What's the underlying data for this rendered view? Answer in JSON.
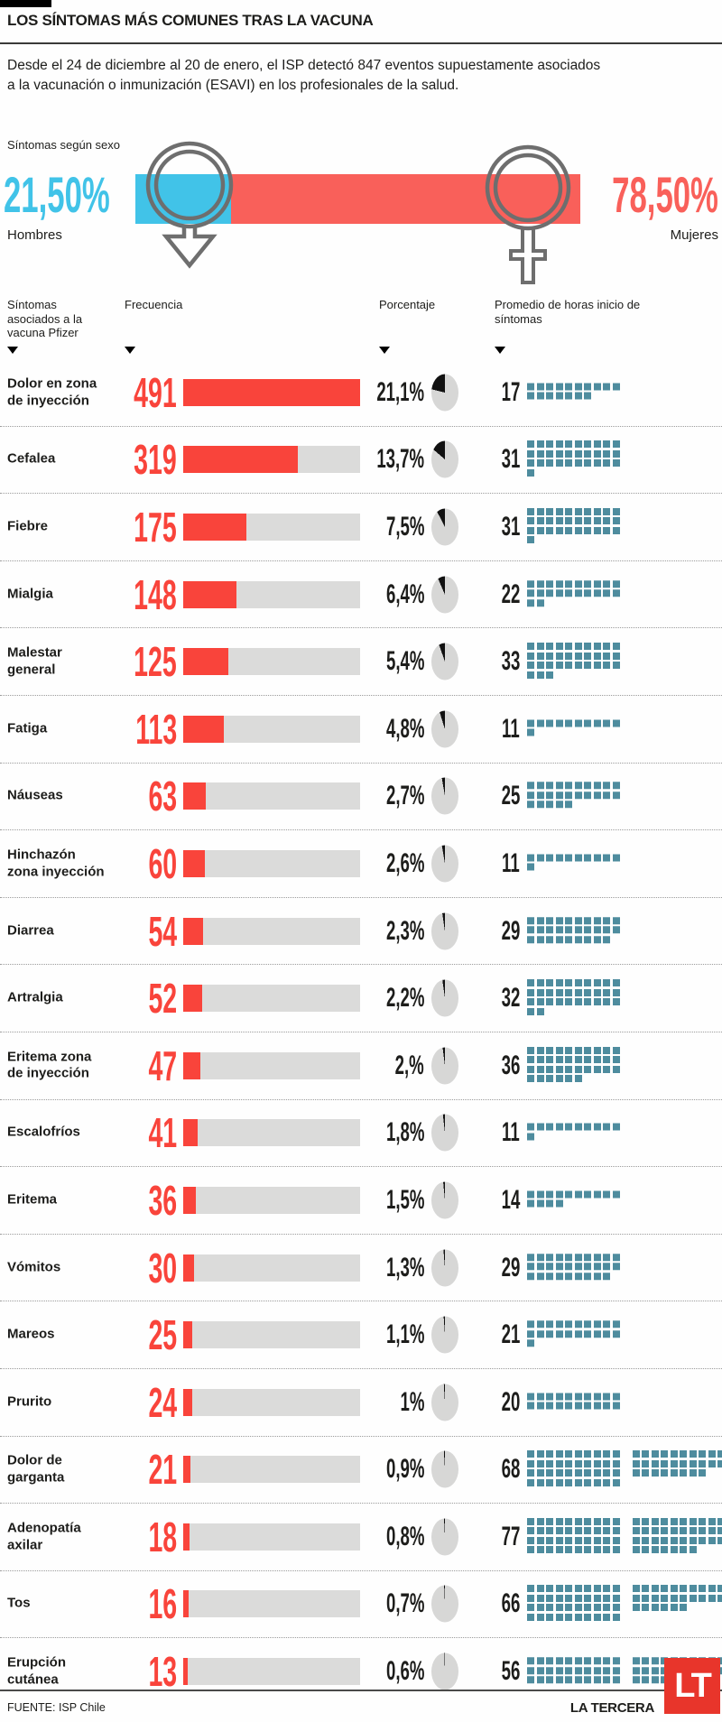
{
  "header": {
    "title": "LOS SÍNTOMAS MÁS COMUNES TRAS LA VACUNA",
    "subtitle": "Desde el 24 de diciembre al 20 de enero, el ISP detectó 847 eventos supuestamente asociados a la vacunación o inmunización (ESAVI) en los profesionales de la salud."
  },
  "sex": {
    "label": "Síntomas según sexo",
    "male_pct_label": "21,50%",
    "male_word": "Hombres",
    "male_value": 21.5,
    "female_pct_label": "78,50%",
    "female_word": "Mujeres",
    "female_value": 78.5
  },
  "chart_data": {
    "type": "table",
    "title": "LOS SÍNTOMAS MÁS COMUNES TRAS LA VACUNA",
    "columns": [
      "Síntomas asociados a la vacuna Pfizer",
      "Frecuencia",
      "Porcentaje",
      "Promedio de horas inicio de síntomas"
    ],
    "frequency_max": 491,
    "sex_split": {
      "male": 21.5,
      "female": 78.5
    },
    "rows": [
      {
        "symptom": "Dolor en zona de inyección",
        "frequency": 491,
        "pct_label": "21,1%",
        "pct": 21.1,
        "hours": 17
      },
      {
        "symptom": "Cefalea",
        "frequency": 319,
        "pct_label": "13,7%",
        "pct": 13.7,
        "hours": 31
      },
      {
        "symptom": "Fiebre",
        "frequency": 175,
        "pct_label": "7,5%",
        "pct": 7.5,
        "hours": 31
      },
      {
        "symptom": "Mialgia",
        "frequency": 148,
        "pct_label": "6,4%",
        "pct": 6.4,
        "hours": 22
      },
      {
        "symptom": "Malestar general",
        "frequency": 125,
        "pct_label": "5,4%",
        "pct": 5.4,
        "hours": 33
      },
      {
        "symptom": "Fatiga",
        "frequency": 113,
        "pct_label": "4,8%",
        "pct": 4.8,
        "hours": 11
      },
      {
        "symptom": "Náuseas",
        "frequency": 63,
        "pct_label": "2,7%",
        "pct": 2.7,
        "hours": 25
      },
      {
        "symptom": "Hinchazón zona inyección",
        "frequency": 60,
        "pct_label": "2,6%",
        "pct": 2.6,
        "hours": 11
      },
      {
        "symptom": "Diarrea",
        "frequency": 54,
        "pct_label": "2,3%",
        "pct": 2.3,
        "hours": 29
      },
      {
        "symptom": "Artralgia",
        "frequency": 52,
        "pct_label": "2,2%",
        "pct": 2.2,
        "hours": 32
      },
      {
        "symptom": "Eritema zona de inyección",
        "frequency": 47,
        "pct_label": "2,%",
        "pct": 2.0,
        "hours": 36
      },
      {
        "symptom": "Escalofríos",
        "frequency": 41,
        "pct_label": "1,8%",
        "pct": 1.8,
        "hours": 11
      },
      {
        "symptom": "Eritema",
        "frequency": 36,
        "pct_label": "1,5%",
        "pct": 1.5,
        "hours": 14
      },
      {
        "symptom": "Vómitos",
        "frequency": 30,
        "pct_label": "1,3%",
        "pct": 1.3,
        "hours": 29
      },
      {
        "symptom": "Mareos",
        "frequency": 25,
        "pct_label": "1,1%",
        "pct": 1.1,
        "hours": 21
      },
      {
        "symptom": "Prurito",
        "frequency": 24,
        "pct_label": "1%",
        "pct": 1.0,
        "hours": 20
      },
      {
        "symptom": "Dolor de garganta",
        "frequency": 21,
        "pct_label": "0,9%",
        "pct": 0.9,
        "hours": 68
      },
      {
        "symptom": "Adenopatía axilar",
        "frequency": 18,
        "pct_label": "0,8%",
        "pct": 0.8,
        "hours": 77
      },
      {
        "symptom": "Tos",
        "frequency": 16,
        "pct_label": "0,7%",
        "pct": 0.7,
        "hours": 66
      },
      {
        "symptom": "Erupción cutánea",
        "frequency": 13,
        "pct_label": "0,6%",
        "pct": 0.6,
        "hours": 56
      }
    ]
  },
  "footer": {
    "source": "FUENTE: ISP Chile",
    "brand": "LA TERCERA",
    "logo_text": "LT"
  },
  "colors": {
    "male_blue": "#41c3e8",
    "female_red": "#f9605a",
    "bar_red": "#f9443b",
    "bar_bg": "#dbdbda",
    "pie_slice": "#111111",
    "pie_bg": "#d7d7d6",
    "waffle_teal": "#4e8c9e",
    "logo_red": "#e8352b"
  }
}
